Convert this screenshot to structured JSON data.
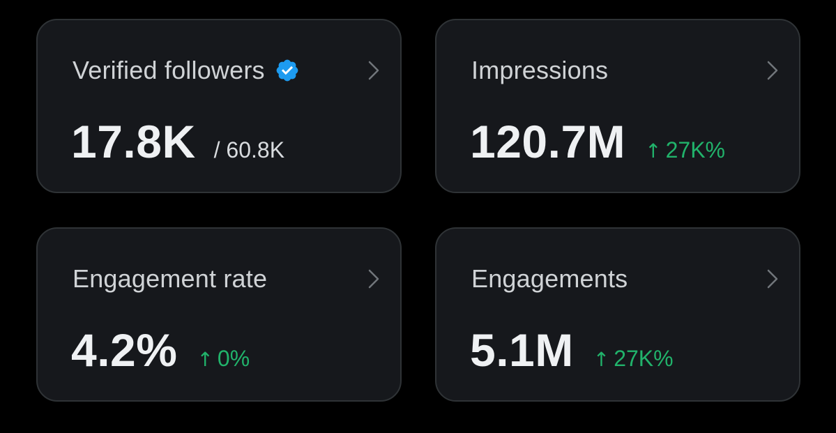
{
  "colors": {
    "background": "#000000",
    "card_background": "#16181c",
    "card_border": "#2f3336",
    "positive": "#21b36b",
    "verified_blue": "#1d9bf0"
  },
  "cards": [
    {
      "title": "Verified followers",
      "verified_badge": true,
      "value": "17.8K",
      "secondary": "/ 60.8K"
    },
    {
      "title": "Impressions",
      "value": "120.7M",
      "delta_arrow": "↑",
      "delta": "27K%"
    },
    {
      "title": "Engagement rate",
      "value": "4.2%",
      "delta_arrow": "↑",
      "delta": "0%"
    },
    {
      "title": "Engagements",
      "value": "5.1M",
      "delta_arrow": "↑",
      "delta": "27K%"
    }
  ]
}
